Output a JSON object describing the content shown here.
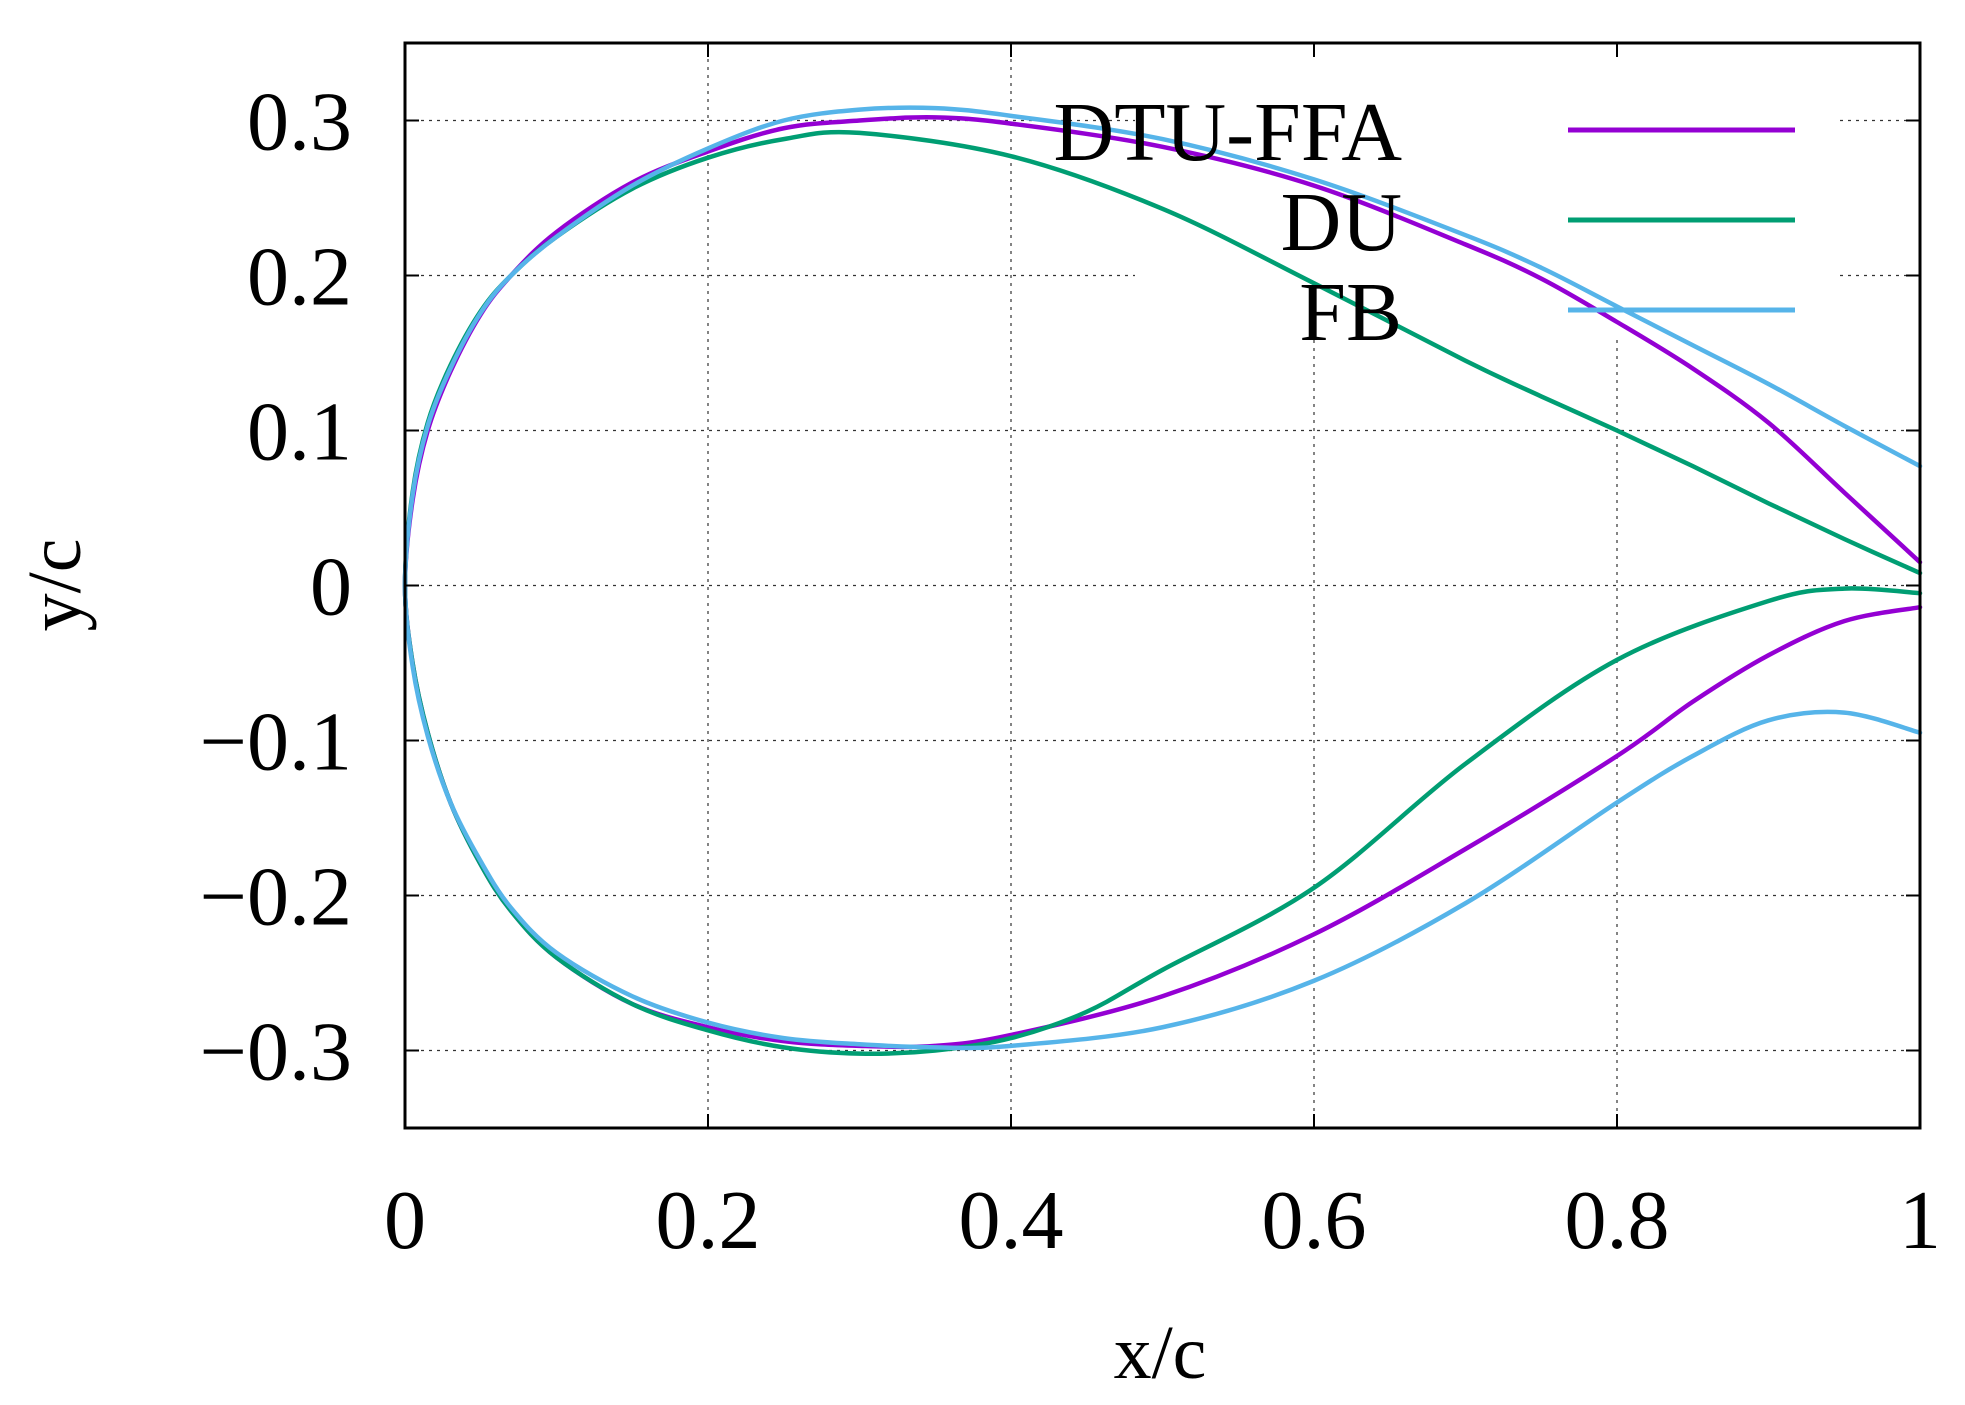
{
  "chart_data": {
    "type": "line",
    "title": "",
    "xlabel": "x/c",
    "ylabel": "y/c",
    "xlim": [
      0,
      1
    ],
    "ylim": [
      -0.35,
      0.35
    ],
    "grid": true,
    "legend_position": "top-right",
    "x_ticks": [
      {
        "value": 0,
        "label": "0"
      },
      {
        "value": 0.2,
        "label": "0.2"
      },
      {
        "value": 0.4,
        "label": "0.4"
      },
      {
        "value": 0.6,
        "label": "0.6"
      },
      {
        "value": 0.8,
        "label": "0.8"
      },
      {
        "value": 1,
        "label": "1"
      }
    ],
    "y_ticks": [
      {
        "value": 0.3,
        "label": "0.3"
      },
      {
        "value": 0.2,
        "label": "0.2"
      },
      {
        "value": 0.1,
        "label": "0.1"
      },
      {
        "value": 0,
        "label": "0"
      },
      {
        "value": -0.1,
        "label": "−0.1"
      },
      {
        "value": -0.2,
        "label": "−0.2"
      },
      {
        "value": -0.3,
        "label": "−0.3"
      }
    ],
    "series": [
      {
        "name": "DTU-FFA",
        "color": "#9400d3",
        "x": [
          1.0,
          0.95,
          0.9,
          0.85,
          0.8,
          0.75,
          0.7,
          0.6,
          0.5,
          0.4,
          0.35,
          0.3,
          0.25,
          0.2,
          0.15,
          0.1,
          0.07,
          0.05,
          0.03,
          0.015,
          0.005,
          0.0,
          0.005,
          0.015,
          0.03,
          0.05,
          0.07,
          0.1,
          0.15,
          0.2,
          0.25,
          0.3,
          0.35,
          0.4,
          0.5,
          0.6,
          0.7,
          0.8,
          0.85,
          0.9,
          0.95,
          1.0
        ],
        "y": [
          0.015,
          0.06,
          0.105,
          0.14,
          0.17,
          0.198,
          0.22,
          0.258,
          0.283,
          0.298,
          0.302,
          0.3,
          0.295,
          0.28,
          0.26,
          0.228,
          0.2,
          0.175,
          0.138,
          0.1,
          0.055,
          0.0,
          -0.05,
          -0.095,
          -0.14,
          -0.18,
          -0.21,
          -0.24,
          -0.27,
          -0.285,
          -0.294,
          -0.297,
          -0.297,
          -0.29,
          -0.265,
          -0.225,
          -0.17,
          -0.11,
          -0.075,
          -0.045,
          -0.023,
          -0.014
        ]
      },
      {
        "name": "DU",
        "color": "#009e73",
        "x": [
          1.0,
          0.95,
          0.9,
          0.85,
          0.8,
          0.75,
          0.7,
          0.6,
          0.5,
          0.4,
          0.3,
          0.25,
          0.2,
          0.15,
          0.1,
          0.07,
          0.05,
          0.03,
          0.015,
          0.005,
          0.0,
          0.005,
          0.015,
          0.03,
          0.05,
          0.07,
          0.1,
          0.15,
          0.2,
          0.25,
          0.3,
          0.35,
          0.4,
          0.45,
          0.5,
          0.6,
          0.7,
          0.8,
          0.9,
          0.95,
          1.0
        ],
        "y": [
          0.008,
          0.03,
          0.053,
          0.077,
          0.1,
          0.122,
          0.145,
          0.195,
          0.243,
          0.277,
          0.292,
          0.288,
          0.276,
          0.256,
          0.225,
          0.2,
          0.177,
          0.142,
          0.105,
          0.06,
          0.0,
          -0.05,
          -0.095,
          -0.14,
          -0.18,
          -0.21,
          -0.24,
          -0.27,
          -0.287,
          -0.298,
          -0.302,
          -0.3,
          -0.292,
          -0.275,
          -0.248,
          -0.195,
          -0.115,
          -0.048,
          -0.01,
          -0.002,
          -0.005
        ]
      },
      {
        "name": "FB",
        "color": "#56b4e9",
        "x": [
          1.0,
          0.95,
          0.9,
          0.85,
          0.8,
          0.75,
          0.7,
          0.6,
          0.5,
          0.4,
          0.35,
          0.3,
          0.25,
          0.2,
          0.15,
          0.1,
          0.07,
          0.05,
          0.03,
          0.015,
          0.005,
          0.0,
          0.005,
          0.015,
          0.03,
          0.05,
          0.07,
          0.1,
          0.15,
          0.2,
          0.25,
          0.3,
          0.35,
          0.4,
          0.5,
          0.6,
          0.7,
          0.8,
          0.85,
          0.9,
          0.95,
          1.0
        ],
        "y": [
          0.077,
          0.103,
          0.13,
          0.155,
          0.18,
          0.205,
          0.226,
          0.262,
          0.288,
          0.303,
          0.308,
          0.307,
          0.3,
          0.282,
          0.258,
          0.225,
          0.2,
          0.176,
          0.14,
          0.103,
          0.058,
          0.0,
          -0.052,
          -0.097,
          -0.14,
          -0.178,
          -0.208,
          -0.237,
          -0.265,
          -0.282,
          -0.292,
          -0.296,
          -0.298,
          -0.297,
          -0.285,
          -0.255,
          -0.205,
          -0.14,
          -0.11,
          -0.087,
          -0.082,
          -0.095
        ]
      }
    ]
  }
}
